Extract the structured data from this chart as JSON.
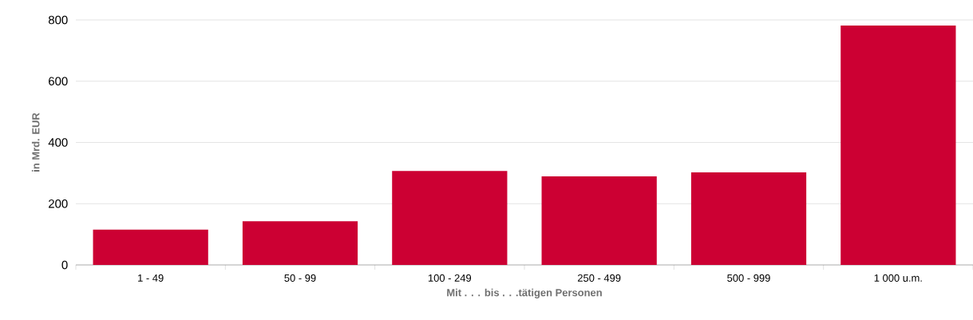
{
  "chart_data": {
    "type": "bar",
    "xlabel": "Mit . . . bis . . .tätigen Personen",
    "ylabel": "in Mrd. EUR",
    "categories": [
      "1 - 49",
      "50 - 99",
      "100 - 249",
      "250 - 499",
      "500 - 999",
      "1 000 u.m."
    ],
    "values": [
      115,
      143,
      307,
      289,
      302,
      782
    ],
    "color": "#cc0033",
    "ylim": [
      0,
      800
    ],
    "yticks": [
      0,
      200,
      400,
      600,
      800
    ],
    "grid": "y"
  }
}
